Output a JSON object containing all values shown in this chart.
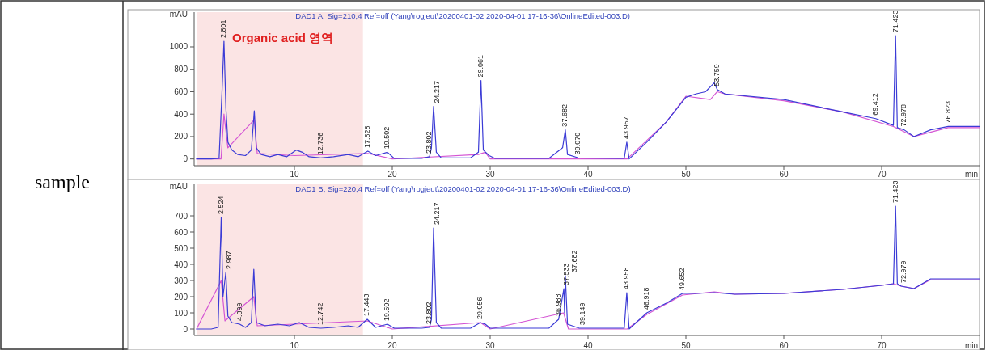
{
  "chart_data": [
    {
      "type": "line",
      "title": "DAD1 A, Sig=210,4 Ref=off (Yang\\rogjeut\\20200401-02 2020-04-01 17-16-36\\OnlineEdited-003.D)",
      "xlabel": "min",
      "ylabel": "mAU",
      "xlim": [
        0,
        80
      ],
      "xticks": [
        10,
        20,
        30,
        40,
        50,
        60,
        70
      ],
      "ylim": [
        -60,
        1310
      ],
      "yticks": [
        0,
        200,
        400,
        600,
        800,
        1000
      ],
      "grid": false,
      "bands": [
        {
          "axis": "x",
          "from": 0,
          "to": 17,
          "label": "Organic acid 영역",
          "color": "#fbe4e4"
        }
      ],
      "series": [
        {
          "color": "#3b3bd6",
          "x": [
            0,
            1.5,
            2.3,
            2.6,
            2.8,
            3.0,
            3.2,
            3.6,
            4.2,
            5.0,
            5.6,
            5.9,
            6.1,
            6.6,
            7.5,
            8.3,
            9.2,
            10.2,
            10.8,
            11.5,
            12.7,
            14,
            15.5,
            16.5,
            17.5,
            18.3,
            19.5,
            20.2,
            23,
            23.8,
            24.0,
            24.217,
            24.5,
            25,
            28,
            28.8,
            29.06,
            29.3,
            29.9,
            30.5,
            36,
            37.4,
            37.68,
            37.9,
            39,
            43.7,
            43.96,
            44.2,
            46,
            48,
            50,
            51,
            52,
            52.9,
            53.2,
            54,
            60,
            66,
            69.4,
            71.2,
            71.42,
            71.6,
            72.3,
            73.3,
            75,
            76.8,
            80
          ],
          "values": [
            0,
            0,
            5,
            600,
            1050,
            450,
            150,
            80,
            40,
            30,
            80,
            430,
            100,
            40,
            20,
            40,
            20,
            80,
            60,
            20,
            10,
            20,
            40,
            20,
            70,
            30,
            60,
            5,
            5,
            20,
            100,
            470,
            60,
            10,
            10,
            60,
            700,
            80,
            30,
            5,
            5,
            100,
            260,
            40,
            10,
            5,
            150,
            0,
            150,
            330,
            550,
            580,
            600,
            680,
            620,
            580,
            530,
            420,
            360,
            300,
            1100,
            280,
            260,
            200,
            260,
            290,
            290
          ]
        },
        {
          "color": "#d455d4",
          "x": [
            0,
            2.5,
            2.8,
            3.2,
            5.9,
            6.2,
            10,
            17.5,
            20,
            28.8,
            29.5,
            30,
            44,
            48,
            50,
            52.5,
            53.2,
            54,
            60,
            66,
            71.2,
            73.3,
            76.8,
            80
          ],
          "values": [
            0,
            0,
            400,
            100,
            350,
            50,
            30,
            50,
            0,
            40,
            60,
            0,
            0,
            330,
            560,
            530,
            600,
            580,
            520,
            420,
            290,
            200,
            280,
            280
          ]
        }
      ],
      "annotations": [
        "sample",
        {
          "text": "2.801",
          "x": 2.8,
          "y": 1050
        },
        {
          "text": "12.736",
          "x": 12.7,
          "y": 10
        },
        {
          "text": "17.528",
          "x": 17.5,
          "y": 70
        },
        {
          "text": "19.502",
          "x": 19.5,
          "y": 60
        },
        {
          "text": "23.802",
          "x": 23.8,
          "y": 20
        },
        {
          "text": "24.217",
          "x": 24.217,
          "y": 470
        },
        {
          "text": "29.061",
          "x": 29.06,
          "y": 700
        },
        {
          "text": "37.682",
          "x": 37.68,
          "y": 260
        },
        {
          "text": "39.070",
          "x": 39,
          "y": 10
        },
        {
          "text": "43.957",
          "x": 43.96,
          "y": 150
        },
        {
          "text": "53.759",
          "x": 53.2,
          "y": 620
        },
        {
          "text": "69.412",
          "x": 69.4,
          "y": 360
        },
        {
          "text": "71.423",
          "x": 71.42,
          "y": 1100
        },
        {
          "text": "72.978",
          "x": 72.3,
          "y": 260
        },
        {
          "text": "76.823",
          "x": 76.8,
          "y": 290
        }
      ]
    },
    {
      "type": "line",
      "title": "DAD1 B, Sig=220,4 Ref=off (Yang\\rogjeut\\20200401-02 2020-04-01 17-16-36\\OnlineEdited-003.D)",
      "xlabel": "min",
      "ylabel": "mAU",
      "xlim": [
        0,
        80
      ],
      "xticks": [
        10,
        20,
        30,
        40,
        50,
        60,
        70
      ],
      "ylim": [
        -40,
        895
      ],
      "yticks": [
        0,
        100,
        200,
        300,
        400,
        500,
        600,
        700
      ],
      "grid": false,
      "bands": [
        {
          "axis": "x",
          "from": 0,
          "to": 17,
          "color": "#fbe4e4"
        }
      ],
      "series": [
        {
          "color": "#3b3bd6",
          "x": [
            0,
            1.5,
            2.2,
            2.52,
            2.7,
            2.99,
            3.2,
            3.6,
            4.4,
            5.0,
            5.6,
            5.85,
            6.1,
            7,
            8.3,
            9.5,
            10.5,
            11.5,
            12.7,
            14,
            15.5,
            16.5,
            17.44,
            18.3,
            19.5,
            20.2,
            23,
            23.8,
            24.0,
            24.217,
            24.5,
            25,
            28,
            29,
            29.5,
            30,
            36,
            37,
            37.53,
            37.6,
            37.68,
            37.9,
            39.1,
            43.7,
            43.96,
            44.2,
            46,
            48,
            49.65,
            51,
            52.9,
            55,
            60,
            66,
            70,
            71.2,
            71.42,
            71.6,
            72,
            73.3,
            75,
            80
          ],
          "values": [
            0,
            0,
            10,
            690,
            200,
            350,
            80,
            40,
            30,
            10,
            40,
            370,
            40,
            20,
            30,
            20,
            40,
            10,
            5,
            10,
            20,
            10,
            60,
            10,
            30,
            5,
            5,
            10,
            60,
            625,
            40,
            5,
            5,
            40,
            30,
            5,
            5,
            60,
            250,
            100,
            330,
            30,
            5,
            5,
            225,
            0,
            100,
            160,
            220,
            220,
            225,
            215,
            220,
            245,
            270,
            280,
            760,
            280,
            265,
            250,
            310,
            310
          ]
        },
        {
          "color": "#d455d4",
          "x": [
            0,
            2.52,
            2.9,
            5.85,
            6.2,
            17.44,
            20,
            29,
            30,
            37.5,
            38,
            44,
            46,
            49.65,
            52.9,
            55,
            60,
            66,
            70,
            71.2,
            72,
            73.3,
            75,
            80
          ],
          "values": [
            0,
            300,
            50,
            200,
            20,
            50,
            0,
            40,
            0,
            100,
            0,
            0,
            90,
            210,
            230,
            215,
            220,
            245,
            270,
            280,
            265,
            250,
            305,
            305
          ]
        }
      ],
      "annotations": [
        {
          "text": "2.524",
          "x": 2.52,
          "y": 690
        },
        {
          "text": "2.987",
          "x": 2.99,
          "y": 350
        },
        {
          "text": "4.399",
          "x": 4.4,
          "y": 30
        },
        {
          "text": "12.742",
          "x": 12.7,
          "y": 5
        },
        {
          "text": "17.443",
          "x": 17.44,
          "y": 60
        },
        {
          "text": "19.502",
          "x": 19.5,
          "y": 30
        },
        {
          "text": "23.802",
          "x": 23.8,
          "y": 10
        },
        {
          "text": "24.217",
          "x": 24.217,
          "y": 625
        },
        {
          "text": "29.056",
          "x": 29,
          "y": 40
        },
        {
          "text": "36.988",
          "x": 37,
          "y": 60
        },
        {
          "text": "37.533",
          "x": 37.53,
          "y": 250
        },
        {
          "text": "37.682",
          "x": 37.68,
          "y": 330
        },
        {
          "text": "39.149",
          "x": 39.1,
          "y": 5
        },
        {
          "text": "43.958",
          "x": 43.96,
          "y": 225
        },
        {
          "text": "46.918",
          "x": 46,
          "y": 100
        },
        {
          "text": "49.652",
          "x": 49.65,
          "y": 220
        },
        {
          "text": "71.423",
          "x": 71.42,
          "y": 760
        },
        {
          "text": "72.979",
          "x": 72,
          "y": 265
        }
      ]
    }
  ]
}
